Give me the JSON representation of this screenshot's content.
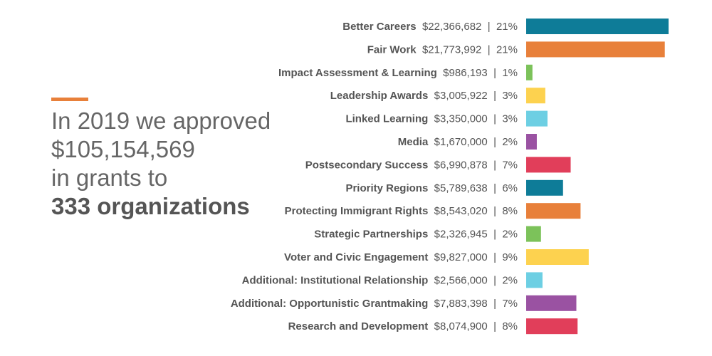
{
  "headline": {
    "line1": "In 2019 we approved",
    "line2": "$105,154,569",
    "line3": "in grants to",
    "line4": "333 organizations"
  },
  "colors": {
    "accent": "#e8803a",
    "teal": "#0e7c98",
    "orange": "#e8803a",
    "green": "#7cc25a",
    "yellow": "#fdd24f",
    "light_blue": "#6dcfe3",
    "purple": "#9a52a2",
    "red": "#e13e5a"
  },
  "chart_data": {
    "type": "bar",
    "orientation": "horizontal",
    "categories": [
      "Better Careers",
      "Fair Work",
      "Impact Assessment & Learning",
      "Leadership Awards",
      "Linked Learning",
      "Media",
      "Postsecondary Success",
      "Priority Regions",
      "Protecting Immigrant Rights",
      "Strategic Partnerships",
      "Voter and Civic Engagement",
      "Additional: Institutional Relationship",
      "Additional: Opportunistic Grantmaking",
      "Research and Development"
    ],
    "amount_labels": [
      "$22,366,682",
      "$21,773,992",
      "$986,193",
      "$3,005,922",
      "$3,350,000",
      "$1,670,000",
      "$6,990,878",
      "$5,789,638",
      "$8,543,020",
      "$2,326,945",
      "$9,827,000",
      "$2,566,000",
      "$7,883,398",
      "$8,074,900"
    ],
    "percent_labels": [
      "21%",
      "21%",
      "1%",
      "3%",
      "3%",
      "2%",
      "7%",
      "6%",
      "8%",
      "2%",
      "9%",
      "2%",
      "7%",
      "8%"
    ],
    "separator": "|",
    "values": [
      22366682,
      21773992,
      986193,
      3005922,
      3350000,
      1670000,
      6990878,
      5789638,
      8543020,
      2326945,
      9827000,
      2566000,
      7883398,
      8074900
    ],
    "bar_colors": [
      "#0e7c98",
      "#e8803a",
      "#7cc25a",
      "#fdd24f",
      "#6dcfe3",
      "#9a52a2",
      "#e13e5a",
      "#0e7c98",
      "#e8803a",
      "#7cc25a",
      "#fdd24f",
      "#6dcfe3",
      "#9a52a2",
      "#e13e5a"
    ],
    "grid": false,
    "axes_visible": false
  }
}
